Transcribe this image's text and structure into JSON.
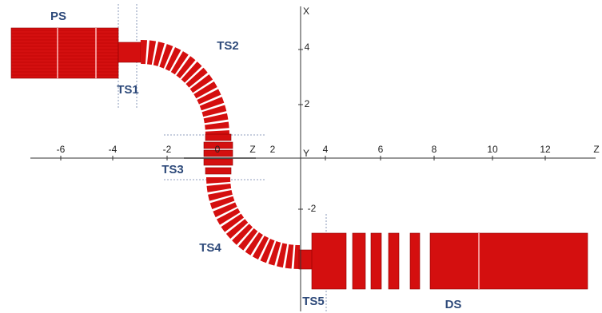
{
  "labels": {
    "ps": "PS",
    "ts1": "TS1",
    "ts2": "TS2",
    "ts3": "TS3",
    "ts4": "TS4",
    "ts5": "TS5",
    "ds": "DS"
  },
  "axes": {
    "x_axis": "X",
    "z_axis": "Z",
    "y_axis": "Y",
    "local_z": "Z",
    "local_zero": "0"
  },
  "z_ticks": [
    "-6",
    "-4",
    "-2",
    "2",
    "4",
    "6",
    "8",
    "10",
    "12"
  ],
  "x_ticks": [
    "4",
    "2",
    "-2"
  ]
}
